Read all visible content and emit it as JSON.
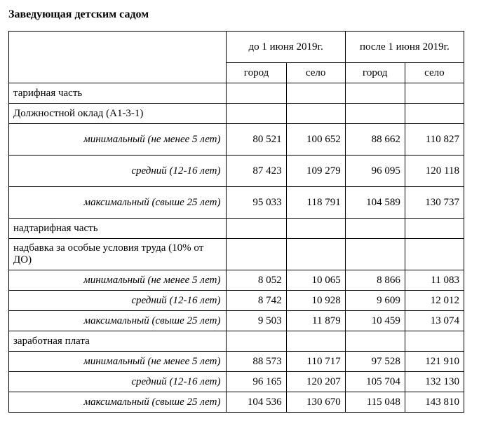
{
  "title": "Заведующая детским садом",
  "header": {
    "period1": "до 1 июня 2019г.",
    "period2": "после 1 июня 2019г.",
    "city": "город",
    "village": "село"
  },
  "sections": {
    "tariff": "тарифная часть",
    "base_salary": "Должностной оклад (A1-3-1)",
    "over_tariff": "надтарифная часть",
    "bonus": "надбавка за особые условия труда (10% от ДО)",
    "salary": "заработная плата"
  },
  "row_labels": {
    "min": "минимальный (не менее 5 лет)",
    "mid": "средний (12-16 лет)",
    "max": "максимальный (свыше 25 лет)"
  },
  "base": {
    "min": {
      "c1": "80 521",
      "v1": "100 652",
      "c2": "88 662",
      "v2": "110 827"
    },
    "mid": {
      "c1": "87 423",
      "v1": "109 279",
      "c2": "96 095",
      "v2": "120 118"
    },
    "max": {
      "c1": "95 033",
      "v1": "118 791",
      "c2": "104 589",
      "v2": "130 737"
    }
  },
  "bonus": {
    "min": {
      "c1": "8 052",
      "v1": "10 065",
      "c2": "8 866",
      "v2": "11 083"
    },
    "mid": {
      "c1": "8 742",
      "v1": "10 928",
      "c2": "9 609",
      "v2": "12 012"
    },
    "max": {
      "c1": "9 503",
      "v1": "11 879",
      "c2": "10 459",
      "v2": "13 074"
    }
  },
  "salary": {
    "min": {
      "c1": "88 573",
      "v1": "110 717",
      "c2": "97 528",
      "v2": "121 910"
    },
    "mid": {
      "c1": "96 165",
      "v1": "120 207",
      "c2": "105 704",
      "v2": "132 130"
    },
    "max": {
      "c1": "104 536",
      "v1": "130 670",
      "c2": "115 048",
      "v2": "143 810"
    }
  }
}
